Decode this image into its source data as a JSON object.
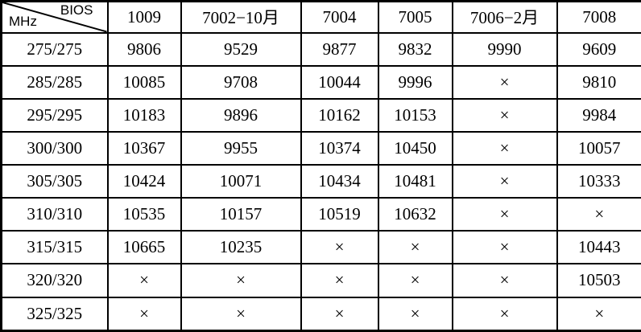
{
  "chart_data": {
    "type": "table",
    "corner": {
      "top_right_label": "BIOS",
      "bottom_left_label": "MHz"
    },
    "column_headers": [
      "1009",
      "7002−10月",
      "7004",
      "7005",
      "7006−2月",
      "7008"
    ],
    "row_headers": [
      "275/275",
      "285/285",
      "295/295",
      "300/300",
      "305/305",
      "310/310",
      "315/315",
      "320/320",
      "325/325"
    ],
    "rows": [
      [
        "9806",
        "9529",
        "9877",
        "9832",
        "9990",
        "9609"
      ],
      [
        "10085",
        "9708",
        "10044",
        "9996",
        "×",
        "9810"
      ],
      [
        "10183",
        "9896",
        "10162",
        "10153",
        "×",
        "9984"
      ],
      [
        "10367",
        "9955",
        "10374",
        "10450",
        "×",
        "10057"
      ],
      [
        "10424",
        "10071",
        "10434",
        "10481",
        "×",
        "10333"
      ],
      [
        "10535",
        "10157",
        "10519",
        "10632",
        "×",
        "×"
      ],
      [
        "10665",
        "10235",
        "×",
        "×",
        "×",
        "10443"
      ],
      [
        "×",
        "×",
        "×",
        "×",
        "×",
        "10503"
      ],
      [
        "×",
        "×",
        "×",
        "×",
        "×",
        "×"
      ]
    ],
    "not_available_symbol": "×"
  },
  "colors": {
    "border": "#000000",
    "background": "#ffffff",
    "text": "#000000"
  }
}
